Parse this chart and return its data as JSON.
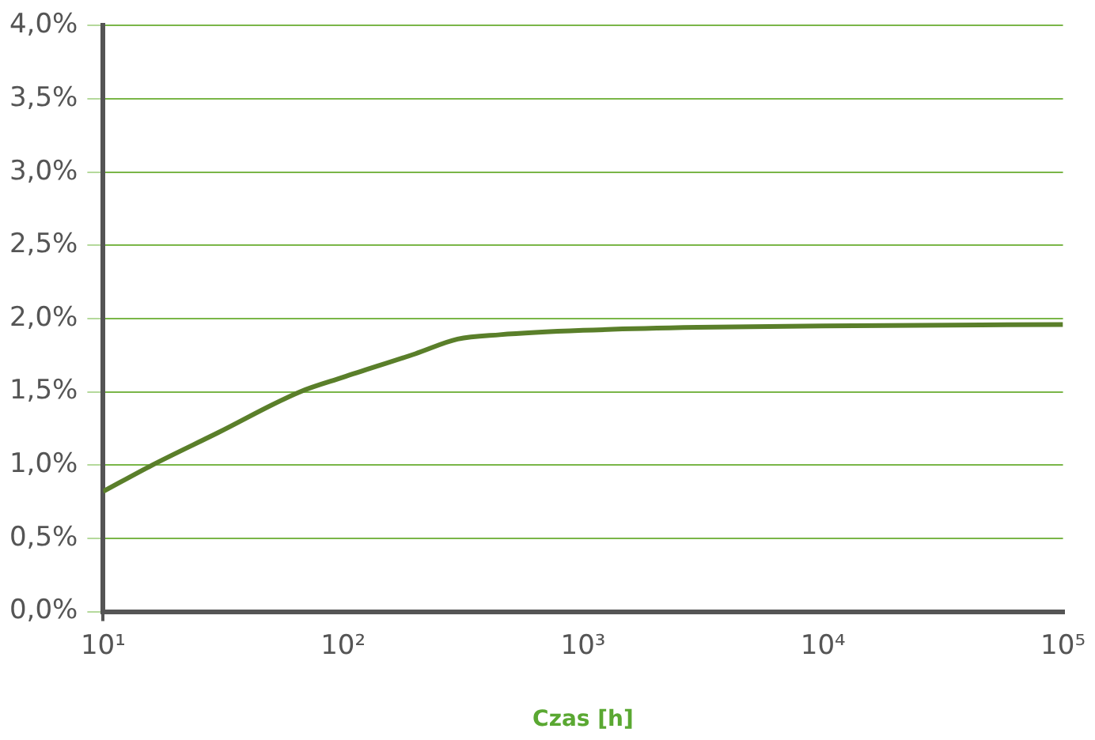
{
  "chart_data": {
    "type": "line",
    "xlabel": "Czas [h]",
    "x": [
      10,
      16,
      30,
      66,
      100,
      200,
      300,
      450,
      1000,
      3000,
      10000,
      100000
    ],
    "series": [
      {
        "color": "#5a7f2a",
        "values": [
          0.82,
          1.0,
          1.22,
          1.5,
          1.6,
          1.76,
          1.86,
          1.89,
          1.92,
          1.94,
          1.95,
          1.96
        ]
      }
    ],
    "log": "x",
    "xlim": [
      10,
      100000
    ],
    "xticks": [
      {
        "value": 10,
        "label": "10¹"
      },
      {
        "value": 100,
        "label": "10²"
      },
      {
        "value": 1000,
        "label": "10³"
      },
      {
        "value": 10000,
        "label": "10⁴"
      },
      {
        "value": 100000,
        "label": "10⁵"
      }
    ],
    "ylim": [
      0,
      4
    ],
    "yticks": [
      {
        "value": 0,
        "label": "0,0%"
      },
      {
        "value": 0.5,
        "label": "0,5%"
      },
      {
        "value": 1,
        "label": "1,0%"
      },
      {
        "value": 1.5,
        "label": "1,5%"
      },
      {
        "value": 2,
        "label": "2,0%"
      },
      {
        "value": 2.5,
        "label": "2,5%"
      },
      {
        "value": 3,
        "label": "3,0%"
      },
      {
        "value": 3.5,
        "label": "3,5%"
      },
      {
        "value": 4,
        "label": "4,0%"
      }
    ],
    "grid": "y",
    "marker": "none",
    "line_style": "solid",
    "legend": false
  }
}
